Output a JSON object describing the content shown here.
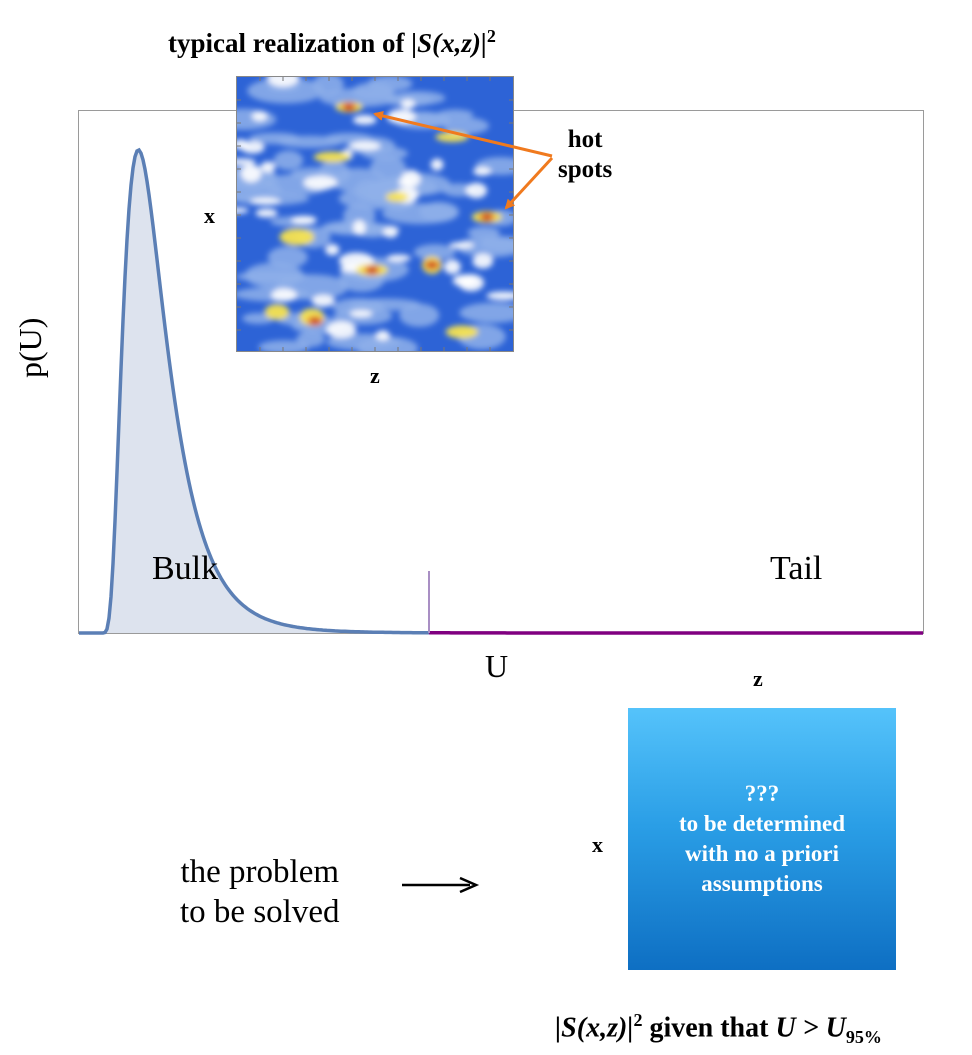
{
  "title": {
    "prefix": "typical realization of ",
    "expr": "|S(x,z)|",
    "power": "2"
  },
  "plot": {
    "ylabel": "p(U)",
    "xlabel": "U",
    "bulk_label": "Bulk",
    "tail_label": "Tail",
    "colors": {
      "bulk_line": "#5b7fb5",
      "bulk_fill": "#dde3ee",
      "tail_line": "#800080",
      "tail_fill": "#e8cde6",
      "frame": "#9a9a9a"
    }
  },
  "heatmap": {
    "x_label": "x",
    "z_label": "z",
    "colors": {
      "low": "#2d63d6",
      "mid": "#8fb0ea",
      "white": "#ffffff",
      "yellow": "#f7e350",
      "orange": "#e88a2a",
      "red": "#c43a2a"
    }
  },
  "annotation": {
    "hot_label_line1": "hot",
    "hot_label_line2": "spots",
    "arrow_color": "#f07a1e"
  },
  "result_box": {
    "z_label": "z",
    "x_label": "x",
    "line1": "???",
    "line2": "to be determined",
    "line3": "with no a priori",
    "line4": "assumptions"
  },
  "problem": {
    "line1": "the problem",
    "line2": "to be solved"
  },
  "bottom_caption": {
    "expr": "|S(x,z)|",
    "power": "2",
    "middle": " given that ",
    "condition": "U > U",
    "subscript": "95%"
  }
}
